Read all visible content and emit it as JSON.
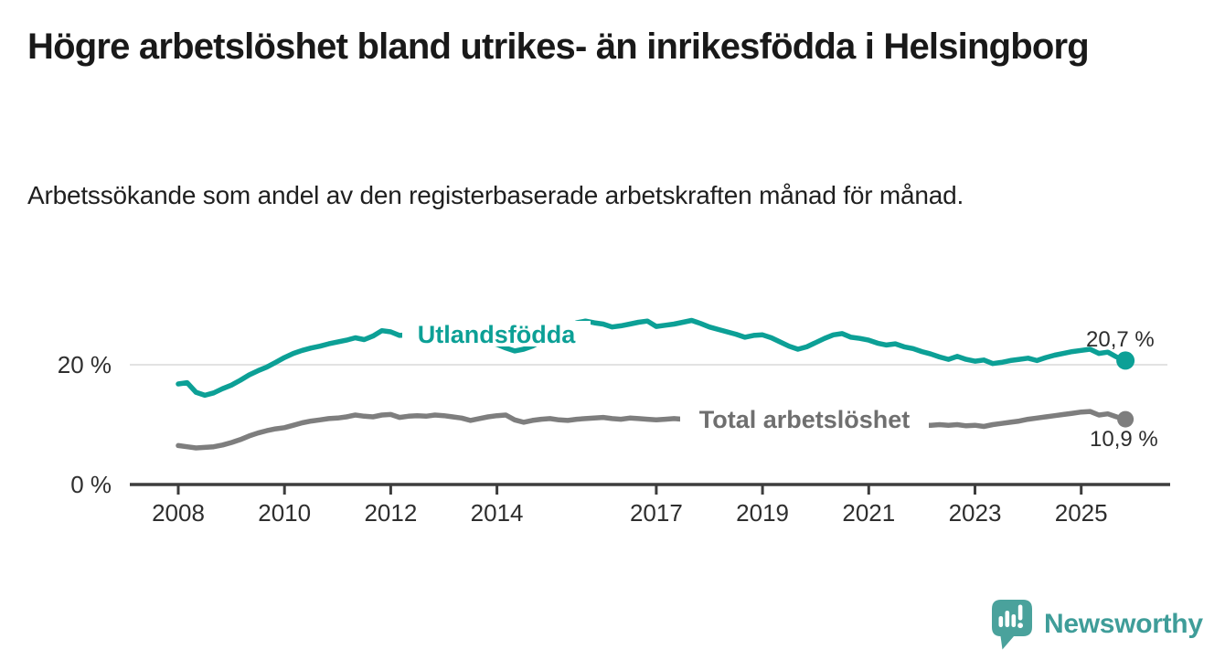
{
  "title": "Högre arbetslöshet bland utrikes- än inrikesfödda i Helsingborg",
  "subtitle": "Arbetssökande som andel av den registerbaserade arbetskraften månad för månad.",
  "footer": {
    "brand": "Newsworthy",
    "logo_icon": "bar-chart-speech-bubble-icon"
  },
  "colors": {
    "accent_teal": "#0ca096",
    "series_gray": "#7e7e7e",
    "gray_label": "#6f6f6f",
    "grid": "#e2e2e2",
    "axis": "#3d3d3d",
    "tick_text": "#2e2e2e",
    "value_label": "#2d2d2d",
    "brand_teal": "#4aa29c",
    "title_text": "#191919"
  },
  "chart_data": {
    "type": "line",
    "title": "",
    "xlabel": "",
    "ylabel": "",
    "x_start_year": 2008,
    "x_step_months": 2,
    "x_end_label_period": "2025 (late)",
    "x_tick_years": [
      2008,
      2010,
      2012,
      2014,
      2017,
      2019,
      2021,
      2023,
      2025
    ],
    "y_ticks": [
      {
        "value": 0,
        "label": "0 %"
      },
      {
        "value": 20,
        "label": "20 %"
      }
    ],
    "ylim": [
      0,
      30
    ],
    "grid": "single-horizontal-gridline-at-20",
    "legend_position": "inline-series-labels",
    "series": [
      {
        "name": "Utlandsfödda",
        "color": "#0ca096",
        "label_color": "#0ca096",
        "end_value": 20.7,
        "end_label": "20,7 %",
        "values": [
          16.8,
          17.0,
          15.4,
          14.9,
          15.3,
          16.0,
          16.6,
          17.4,
          18.3,
          19.0,
          19.6,
          20.4,
          21.2,
          21.9,
          22.4,
          22.8,
          23.1,
          23.5,
          23.8,
          24.1,
          24.5,
          24.2,
          24.8,
          25.7,
          25.5,
          24.9,
          25.0,
          25.2,
          25.1,
          25.3,
          25.3,
          25.1,
          24.8,
          24.4,
          24.0,
          23.7,
          23.4,
          22.8,
          22.3,
          22.6,
          23.1,
          23.9,
          24.6,
          25.3,
          26.2,
          27.0,
          27.3,
          27.0,
          26.8,
          26.3,
          26.5,
          26.8,
          27.1,
          27.3,
          26.4,
          26.6,
          26.8,
          27.1,
          27.4,
          26.9,
          26.3,
          25.9,
          25.5,
          25.1,
          24.6,
          24.9,
          25.0,
          24.5,
          23.8,
          23.1,
          22.6,
          23.0,
          23.7,
          24.4,
          25.0,
          25.2,
          24.6,
          24.4,
          24.1,
          23.6,
          23.3,
          23.5,
          23.0,
          22.7,
          22.2,
          21.8,
          21.3,
          20.9,
          21.4,
          20.9,
          20.6,
          20.8,
          20.2,
          20.4,
          20.7,
          20.9,
          21.1,
          20.7,
          21.2,
          21.6,
          21.9,
          22.2,
          22.4,
          22.6,
          21.9,
          22.1,
          21.3,
          20.7
        ]
      },
      {
        "name": "Total arbetslöshet",
        "color": "#7e7e7e",
        "label_color": "#6f6f6f",
        "end_value": 10.9,
        "end_label": "10,9 %",
        "values": [
          6.5,
          6.3,
          6.1,
          6.2,
          6.3,
          6.6,
          7.0,
          7.5,
          8.1,
          8.6,
          9.0,
          9.3,
          9.5,
          9.9,
          10.3,
          10.6,
          10.8,
          11.0,
          11.1,
          11.3,
          11.6,
          11.4,
          11.3,
          11.6,
          11.7,
          11.2,
          11.4,
          11.5,
          11.4,
          11.6,
          11.5,
          11.3,
          11.1,
          10.7,
          11.0,
          11.3,
          11.5,
          11.6,
          10.8,
          10.4,
          10.7,
          10.9,
          11.0,
          10.8,
          10.7,
          10.9,
          11.0,
          11.1,
          11.2,
          11.0,
          10.9,
          11.1,
          11.0,
          10.9,
          10.8,
          10.9,
          11.0,
          10.9,
          10.8,
          10.7,
          10.6,
          10.5,
          10.4,
          10.3,
          10.2,
          10.2,
          10.2,
          10.1,
          10.0,
          9.9,
          10.0,
          10.1,
          10.3,
          10.8,
          11.2,
          11.3,
          11.1,
          10.9,
          10.6,
          10.4,
          10.2,
          10.1,
          10.0,
          9.9,
          9.9,
          9.9,
          10.0,
          9.9,
          10.0,
          9.8,
          9.9,
          9.7,
          10.0,
          10.2,
          10.4,
          10.6,
          10.9,
          11.1,
          11.3,
          11.5,
          11.7,
          11.9,
          12.1,
          12.2,
          11.6,
          11.8,
          11.3,
          10.9
        ]
      }
    ]
  }
}
